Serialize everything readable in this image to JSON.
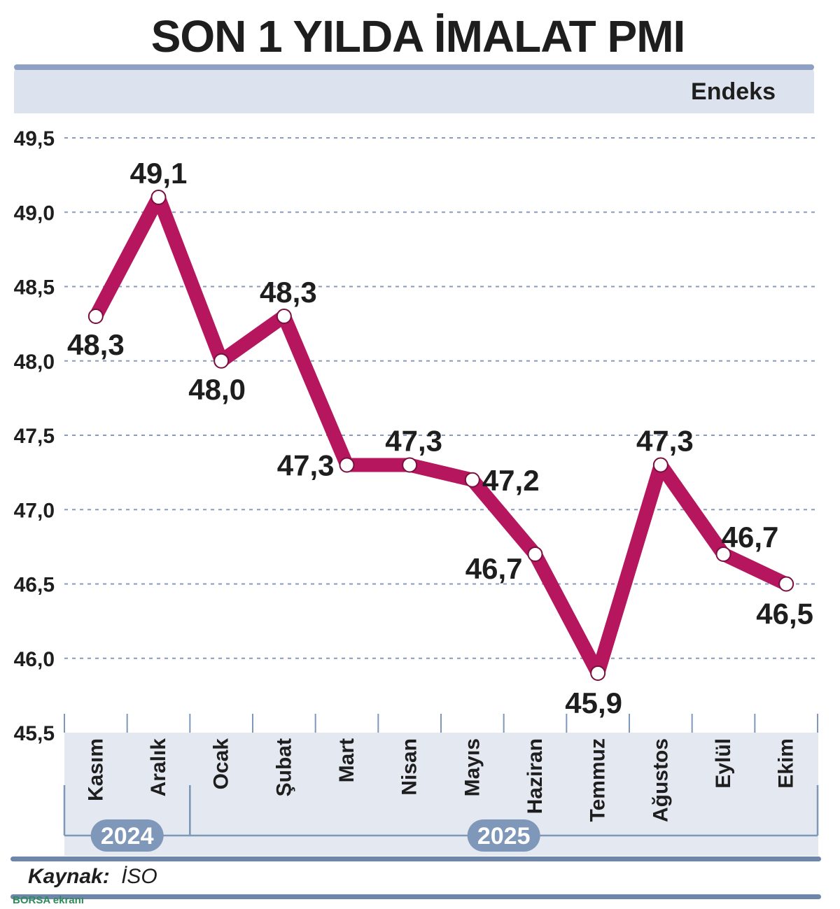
{
  "chart_data": {
    "type": "line",
    "title": "SON 1 YILDA İMALAT PMI",
    "unit": "Endeks",
    "categories": [
      "Kasım",
      "Aralık",
      "Ocak",
      "Şubat",
      "Mart",
      "Nisan",
      "Mayıs",
      "Haziran",
      "Temmuz",
      "Ağustos",
      "Eylül",
      "Ekim"
    ],
    "values": [
      48.3,
      49.1,
      48.0,
      48.3,
      47.3,
      47.3,
      47.2,
      46.7,
      45.9,
      47.3,
      46.7,
      46.5
    ],
    "data_labels": [
      "48,3",
      "49,1",
      "48,0",
      "48,3",
      "47,3",
      "47,3",
      "47,2",
      "46,7",
      "45,9",
      "47,3",
      "46,7",
      "46,5"
    ],
    "ylim": [
      45.5,
      49.5
    ],
    "y_ticks": [
      45.5,
      46.0,
      46.5,
      47.0,
      47.5,
      48.0,
      48.5,
      49.0,
      49.5
    ],
    "y_tick_labels": [
      "45,5",
      "46,0",
      "46,5",
      "47,0",
      "47,5",
      "48,0",
      "48,5",
      "49,0",
      "49,5"
    ],
    "year_groups": [
      {
        "label": "2024",
        "span": 2
      },
      {
        "label": "2025",
        "span": 10
      }
    ],
    "grid": true,
    "line_color": "#b5165e",
    "grid_color": "#8a9bbd",
    "accent_color": "#7f97b9"
  },
  "source": {
    "label": "Kaynak:",
    "value": "İSO"
  },
  "watermark": "BORSA ekranı"
}
